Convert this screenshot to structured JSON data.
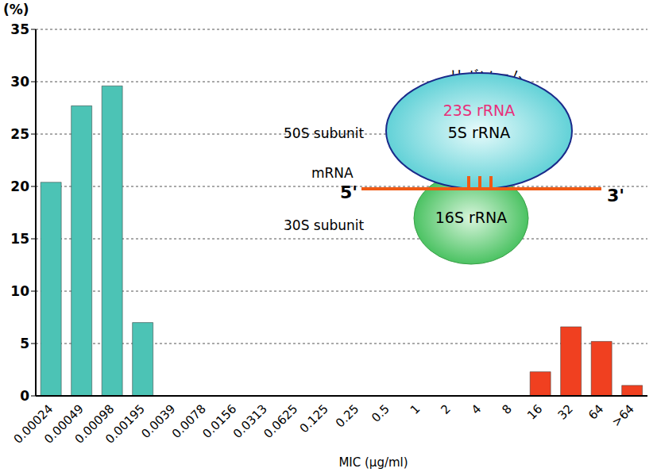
{
  "chart_data": {
    "type": "bar",
    "ylabel": "(%)",
    "xlabel": "MIC (μg/ml)",
    "categories": [
      "0.00024",
      "0.00049",
      "0.00098",
      "0.00195",
      "0.0039",
      "0.0078",
      "0.0156",
      "0.0313",
      "0.0625",
      "0.125",
      "0.25",
      "0.5",
      "1",
      "2",
      "4",
      "8",
      "16",
      "32",
      "64",
      ">64"
    ],
    "values": [
      20.4,
      27.7,
      29.6,
      7.0,
      0,
      0,
      0,
      0,
      0,
      0,
      0,
      0,
      0,
      0,
      0,
      0,
      2.3,
      6.6,
      5.2,
      1.0
    ],
    "colors": [
      "#4cc3b5",
      "#4cc3b5",
      "#4cc3b5",
      "#4cc3b5",
      "#4cc3b5",
      "#4cc3b5",
      "#4cc3b5",
      "#4cc3b5",
      "#4cc3b5",
      "#4cc3b5",
      "#4cc3b5",
      "#4cc3b5",
      "#4cc3b5",
      "#4cc3b5",
      "#4cc3b5",
      "#4cc3b5",
      "#f04020",
      "#f04020",
      "#f04020",
      "#f04020"
    ],
    "ylim": [
      0,
      35
    ],
    "yticks": [
      0,
      5,
      10,
      15,
      20,
      25,
      30,
      35
    ],
    "grid": true,
    "annotations": [
      "リボソーム",
      "23S rRNA",
      "5S rRNA",
      "50S subunit",
      "mRNA",
      "5'",
      "3'",
      "30S subunit",
      "16S rRNA"
    ]
  }
}
